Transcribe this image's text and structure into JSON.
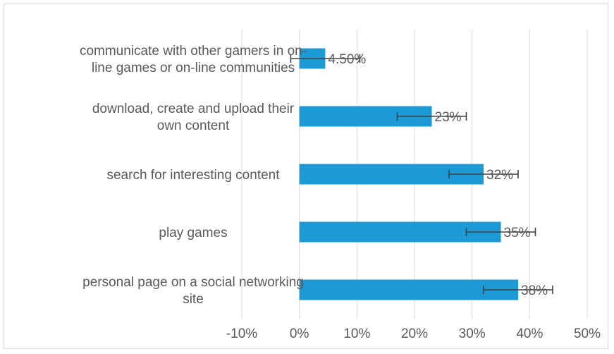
{
  "chart_data": {
    "type": "bar",
    "orientation": "horizontal",
    "categories": [
      [
        "communicate with other gamers in on-",
        "line games or on-line communities"
      ],
      [
        "download, create and upload their",
        "own content"
      ],
      [
        "search for interesting content"
      ],
      [
        "play games"
      ],
      [
        "personal page on a social networking",
        "site"
      ]
    ],
    "values": [
      4.5,
      23,
      32,
      35,
      38
    ],
    "data_labels": [
      "4.50%",
      "23%",
      "32%",
      "35%",
      "38%"
    ],
    "error_bars": [
      {
        "low": -1.5,
        "high": 10.5
      },
      {
        "low": 17,
        "high": 29
      },
      {
        "low": 26,
        "high": 38
      },
      {
        "low": 29,
        "high": 41
      },
      {
        "low": 32,
        "high": 44
      }
    ],
    "xlim": [
      -10,
      50
    ],
    "xticks": [
      -10,
      0,
      10,
      20,
      30,
      40,
      50
    ],
    "xtick_labels": [
      "-10%",
      "0%",
      "10%",
      "20%",
      "30%",
      "40%",
      "50%"
    ],
    "grid": "vertical",
    "title": "",
    "xlabel": "",
    "ylabel": "",
    "colors": {
      "bar": "#1b9ad6",
      "error_bar": "#404040",
      "gridline": "#d9d9d9",
      "text": "#595959"
    }
  }
}
